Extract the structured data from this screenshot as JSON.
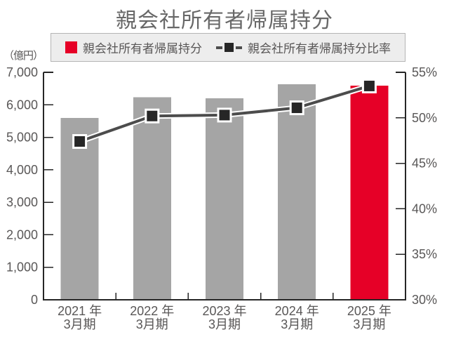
{
  "title": "親会社所有者帰属持分",
  "colors": {
    "bar_gray": "#a5a5a5",
    "bar_red": "#e60027",
    "line": "#4c4c4c",
    "line_casing": "#ffffff",
    "marker_fill": "#262626",
    "marker_border": "#ffffff",
    "axis": "#262626",
    "tick_text": "#595757",
    "title_text": "#686868",
    "legend_bg": "#ededed",
    "legend_border": "#b5b5b5"
  },
  "chart_data": {
    "type": "bar+line",
    "title": "親会社所有者帰属持分",
    "categories": [
      {
        "line1": "2021 年",
        "line2": "3月期"
      },
      {
        "line1": "2022 年",
        "line2": "3月期"
      },
      {
        "line1": "2023 年",
        "line2": "3月期"
      },
      {
        "line1": "2024 年",
        "line2": "3月期"
      },
      {
        "line1": "2025 年",
        "line2": "3月期"
      }
    ],
    "series": [
      {
        "name": "親会社所有者帰属持分",
        "type": "bar",
        "axis": "left",
        "values": [
          5600,
          6230,
          6200,
          6630,
          6590
        ],
        "bar_colors": [
          "#a5a5a5",
          "#a5a5a5",
          "#a5a5a5",
          "#a5a5a5",
          "#e60027"
        ]
      },
      {
        "name": "親会社所有者帰属持分比率",
        "type": "line",
        "axis": "right",
        "values": [
          47.4,
          50.2,
          50.3,
          51.1,
          53.5
        ],
        "unit": "%"
      }
    ],
    "left_axis": {
      "unit": "（億円）",
      "min": 0,
      "max": 7000,
      "step": 1000,
      "tick_labels": [
        "0",
        "1,000",
        "2,000",
        "3,000",
        "4,000",
        "5,000",
        "6,000",
        "7,000"
      ]
    },
    "right_axis": {
      "min": 30,
      "max": 55,
      "step": 5,
      "tick_labels": [
        "30%",
        "35%",
        "40%",
        "45%",
        "50%",
        "55%"
      ]
    },
    "grid": false,
    "legend_position": "top"
  }
}
